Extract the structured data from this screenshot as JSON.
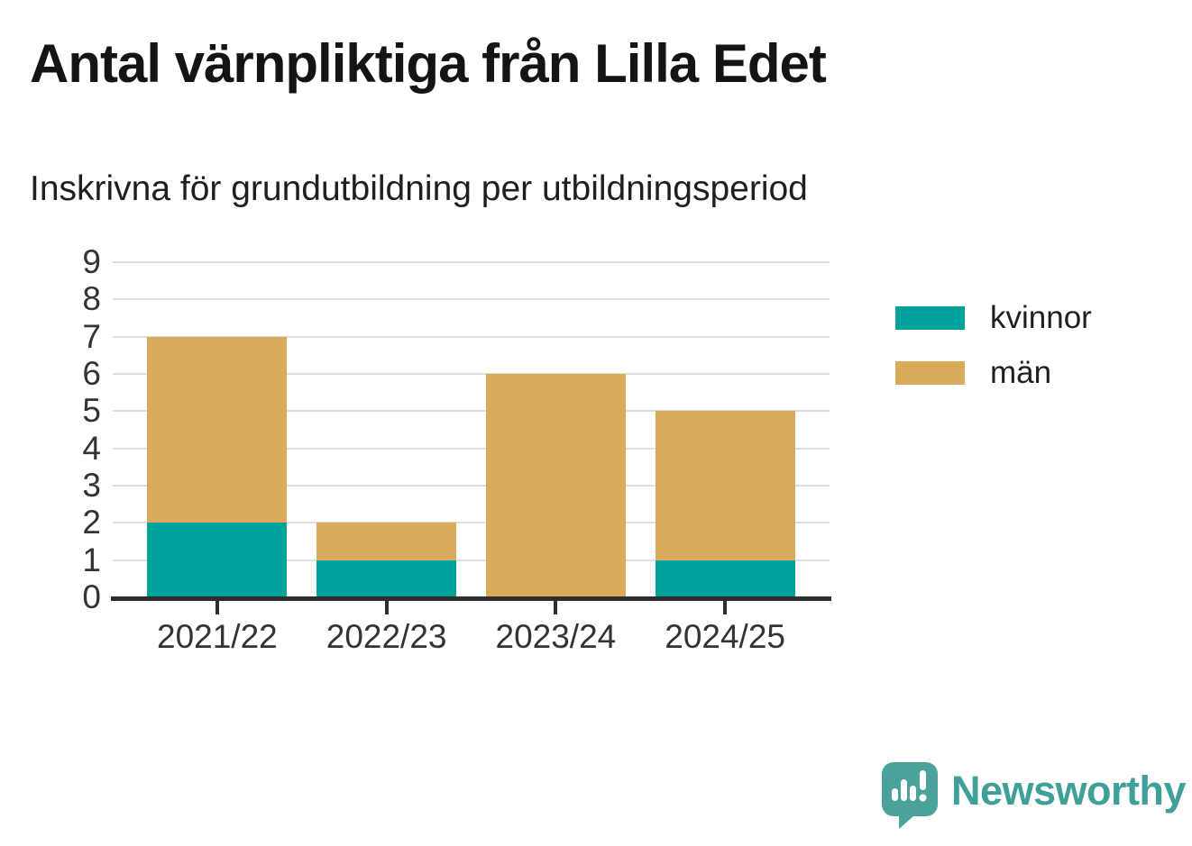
{
  "header": {
    "title": "Antal värnpliktiga från Lilla Edet",
    "subtitle": "Inskrivna för grundutbildning per utbildningsperiod"
  },
  "chart_data": {
    "type": "bar",
    "stacked": true,
    "title": "Antal värnpliktiga från Lilla Edet",
    "subtitle": "Inskrivna för grundutbildning per utbildningsperiod",
    "categories": [
      "2021/22",
      "2022/23",
      "2023/24",
      "2024/25"
    ],
    "series": [
      {
        "name": "kvinnor",
        "color": "#00a29b",
        "values": [
          2,
          1,
          0,
          1
        ]
      },
      {
        "name": "män",
        "color": "#d9aa5a",
        "values": [
          5,
          1,
          6,
          4
        ]
      }
    ],
    "totals": [
      7,
      2,
      6,
      5
    ],
    "xlabel": "",
    "ylabel": "",
    "ylim": [
      0,
      9
    ],
    "yticks": [
      0,
      1,
      2,
      3,
      4,
      5,
      6,
      7,
      8,
      9
    ],
    "grid": "horizontal",
    "legend_position": "right"
  },
  "colors": {
    "axis": "#2e2e2e",
    "grid": "#dedede",
    "tick_text": "#333333",
    "kvinnor": "#00a29b",
    "man": "#d9aa5a",
    "brand_teal": "#3fa099"
  },
  "footer": {
    "brand": "Newsworthy"
  }
}
